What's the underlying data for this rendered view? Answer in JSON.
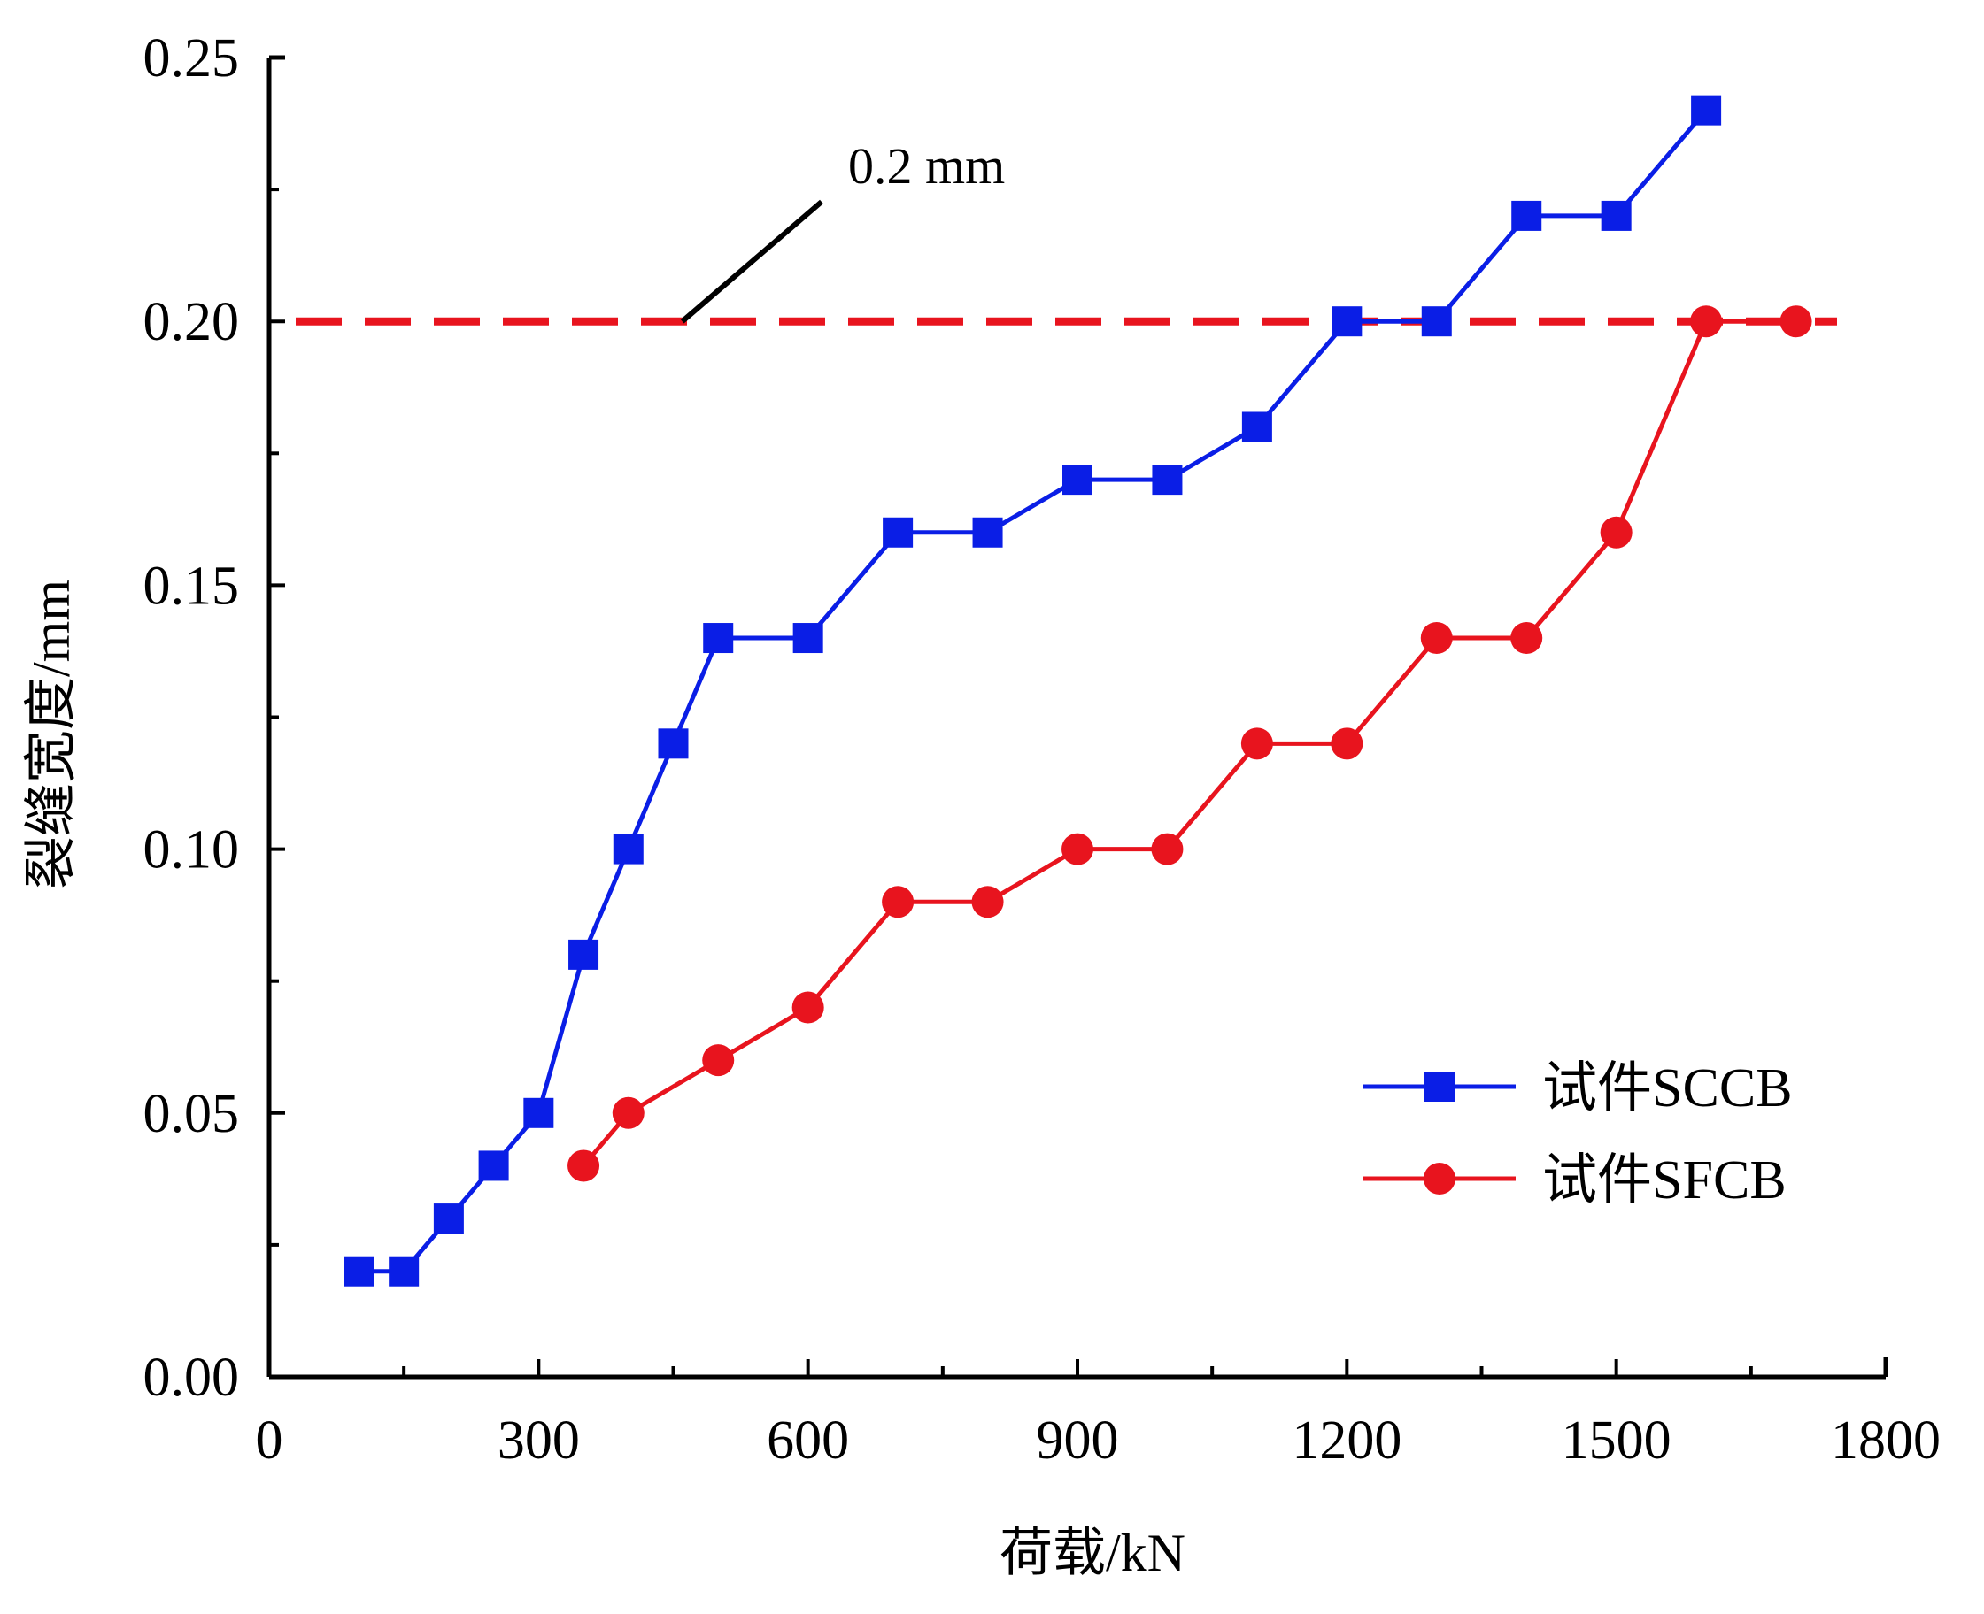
{
  "chart_data": {
    "type": "line",
    "xlabel": "荷载/kN",
    "ylabel": "裂缝宽度/mm",
    "xlim": [
      0,
      1800
    ],
    "ylim": [
      0,
      0.25
    ],
    "x_ticks": [
      0,
      300,
      600,
      900,
      1200,
      1500,
      1800
    ],
    "x_tick_labels": [
      "0",
      "300",
      "600",
      "900",
      "1200",
      "1500",
      "1800"
    ],
    "y_ticks": [
      0,
      0.05,
      0.1,
      0.15,
      0.2,
      0.25
    ],
    "y_tick_labels": [
      "0.00",
      "0.05",
      "0.10",
      "0.15",
      "0.20",
      "0.25"
    ],
    "grid": false,
    "legend_position": "bottom-right",
    "series": [
      {
        "name": "试件SCCB",
        "color": "#0a1ee6",
        "marker": "square",
        "x": [
          100,
          150,
          200,
          250,
          300,
          350,
          400,
          450,
          500,
          600,
          700,
          800,
          900,
          1000,
          1100,
          1200,
          1300,
          1400,
          1500,
          1600
        ],
        "y": [
          0.02,
          0.02,
          0.03,
          0.04,
          0.05,
          0.08,
          0.1,
          0.12,
          0.14,
          0.14,
          0.16,
          0.16,
          0.17,
          0.17,
          0.18,
          0.2,
          0.2,
          0.22,
          0.22,
          0.24
        ]
      },
      {
        "name": "试件SFCB",
        "color": "#e8141e",
        "marker": "circle",
        "x": [
          350,
          400,
          500,
          600,
          700,
          800,
          900,
          1000,
          1100,
          1200,
          1300,
          1400,
          1500,
          1600,
          1700
        ],
        "y": [
          0.04,
          0.05,
          0.06,
          0.07,
          0.09,
          0.09,
          0.1,
          0.1,
          0.12,
          0.12,
          0.14,
          0.14,
          0.16,
          0.2,
          0.2
        ]
      }
    ],
    "reference_line": {
      "y": 0.2,
      "color": "#e8141e",
      "style": "dashed"
    },
    "annotation": {
      "text": "0.2 mm",
      "pointer_x": 460,
      "pointer_y": 0.2
    }
  }
}
